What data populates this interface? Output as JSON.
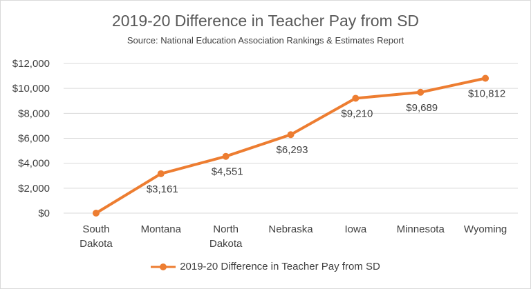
{
  "chart_data": {
    "type": "line",
    "title": "2019-20 Difference in Teacher Pay from SD",
    "subtitle": "Source: National Education Association Rankings & Estimates Report",
    "categories": [
      [
        "South",
        "Dakota"
      ],
      [
        "Montana"
      ],
      [
        "North",
        "Dakota"
      ],
      [
        "Nebraska"
      ],
      [
        "Iowa"
      ],
      [
        "Minnesota"
      ],
      [
        "Wyoming"
      ]
    ],
    "series": [
      {
        "name": "2019-20 Difference in Teacher Pay from SD",
        "values": [
          0,
          3161,
          4551,
          6293,
          9210,
          9689,
          10812
        ],
        "data_labels": [
          "",
          "$3,161",
          "$4,551",
          "$6,293",
          "$9,210",
          "$9,689",
          "$10,812"
        ],
        "color": "#ed7d31"
      }
    ],
    "ylim": [
      0,
      12000
    ],
    "yticks": [
      0,
      2000,
      4000,
      6000,
      8000,
      10000,
      12000
    ],
    "ytick_labels": [
      "$0",
      "$2,000",
      "$4,000",
      "$6,000",
      "$8,000",
      "$10,000",
      "$12,000"
    ],
    "xlabel": "",
    "ylabel": "",
    "grid": true,
    "gridline_color": "#d9d9d9",
    "legend_position": "bottom"
  }
}
